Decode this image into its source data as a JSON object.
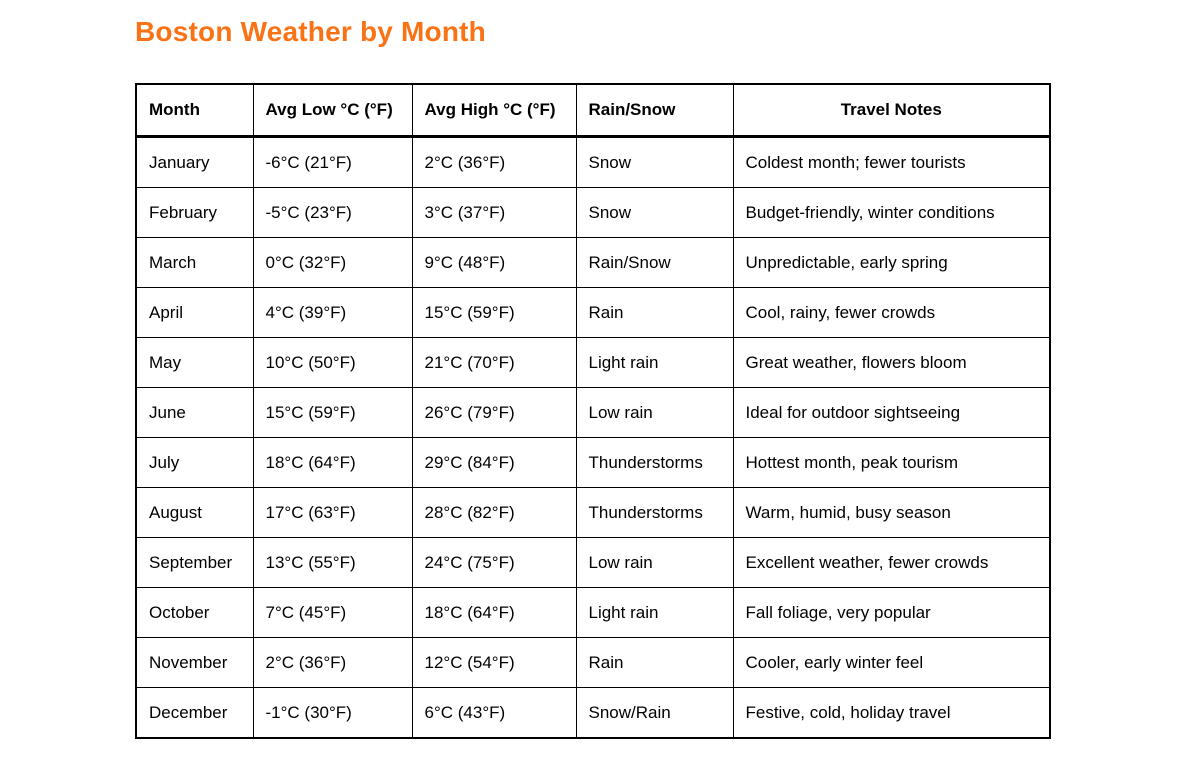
{
  "page": {
    "title": "Boston Weather by Month",
    "title_color": "#F97316"
  },
  "table": {
    "columns": [
      "Month",
      "Avg Low °C (°F)",
      "Avg High °C (°F)",
      "Rain/Snow",
      "Travel Notes"
    ],
    "rows": [
      [
        "January",
        "-6°C (21°F)",
        "2°C (36°F)",
        "Snow",
        "Coldest month; fewer tourists"
      ],
      [
        "February",
        "-5°C (23°F)",
        "3°C (37°F)",
        "Snow",
        "Budget-friendly, winter conditions"
      ],
      [
        "March",
        "0°C (32°F)",
        "9°C (48°F)",
        "Rain/Snow",
        "Unpredictable, early spring"
      ],
      [
        "April",
        "4°C (39°F)",
        "15°C (59°F)",
        "Rain",
        "Cool, rainy, fewer crowds"
      ],
      [
        "May",
        "10°C (50°F)",
        "21°C (70°F)",
        "Light rain",
        "Great weather, flowers bloom"
      ],
      [
        "June",
        "15°C (59°F)",
        "26°C (79°F)",
        "Low rain",
        "Ideal for outdoor sightseeing"
      ],
      [
        "July",
        "18°C (64°F)",
        "29°C (84°F)",
        "Thunderstorms",
        "Hottest month, peak tourism"
      ],
      [
        "August",
        "17°C (63°F)",
        "28°C (82°F)",
        "Thunderstorms",
        "Warm, humid, busy season"
      ],
      [
        "September",
        "13°C (55°F)",
        "24°C (75°F)",
        "Low rain",
        "Excellent weather, fewer crowds"
      ],
      [
        "October",
        "7°C (45°F)",
        "18°C (64°F)",
        "Light rain",
        "Fall foliage, very popular"
      ],
      [
        "November",
        "2°C (36°F)",
        "12°C (54°F)",
        "Rain",
        "Cooler, early winter feel"
      ],
      [
        "December",
        "-1°C (30°F)",
        "6°C (43°F)",
        "Snow/Rain",
        "Festive, cold, holiday travel"
      ]
    ]
  }
}
